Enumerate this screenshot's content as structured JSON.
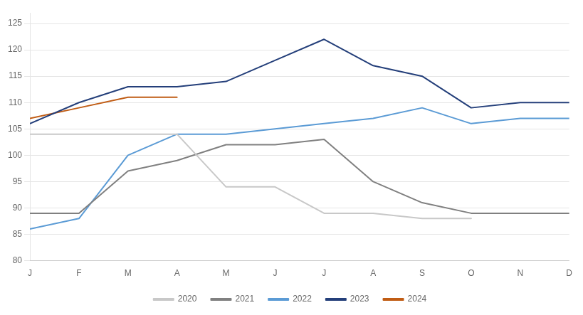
{
  "chart_data": {
    "type": "line",
    "categories": [
      "J",
      "F",
      "M",
      "A",
      "M",
      "J",
      "J",
      "A",
      "S",
      "O",
      "N",
      "D"
    ],
    "series": [
      {
        "name": "2020",
        "color": "#c8c8c8",
        "values": [
          104,
          104,
          104,
          104,
          94,
          94,
          89,
          89,
          88,
          88,
          null,
          null
        ]
      },
      {
        "name": "2021",
        "color": "#808080",
        "values": [
          89,
          89,
          97,
          99,
          102,
          102,
          103,
          95,
          91,
          89,
          89,
          89
        ]
      },
      {
        "name": "2022",
        "color": "#5b9bd5",
        "values": [
          86,
          88,
          100,
          104,
          104,
          105,
          106,
          107,
          109,
          106,
          107,
          107
        ]
      },
      {
        "name": "2023",
        "color": "#243f7a",
        "values": [
          106,
          110,
          113,
          113,
          114,
          118,
          122,
          117,
          115,
          109,
          110,
          110
        ]
      },
      {
        "name": "2024",
        "color": "#c05c14",
        "values": [
          107,
          109,
          111,
          111,
          null,
          null,
          null,
          null,
          null,
          null,
          null,
          null
        ]
      }
    ],
    "ylim": [
      80,
      127
    ],
    "yticks": [
      80,
      85,
      90,
      95,
      100,
      105,
      110,
      115,
      120,
      125
    ],
    "grid": true,
    "legend": "bottom"
  }
}
